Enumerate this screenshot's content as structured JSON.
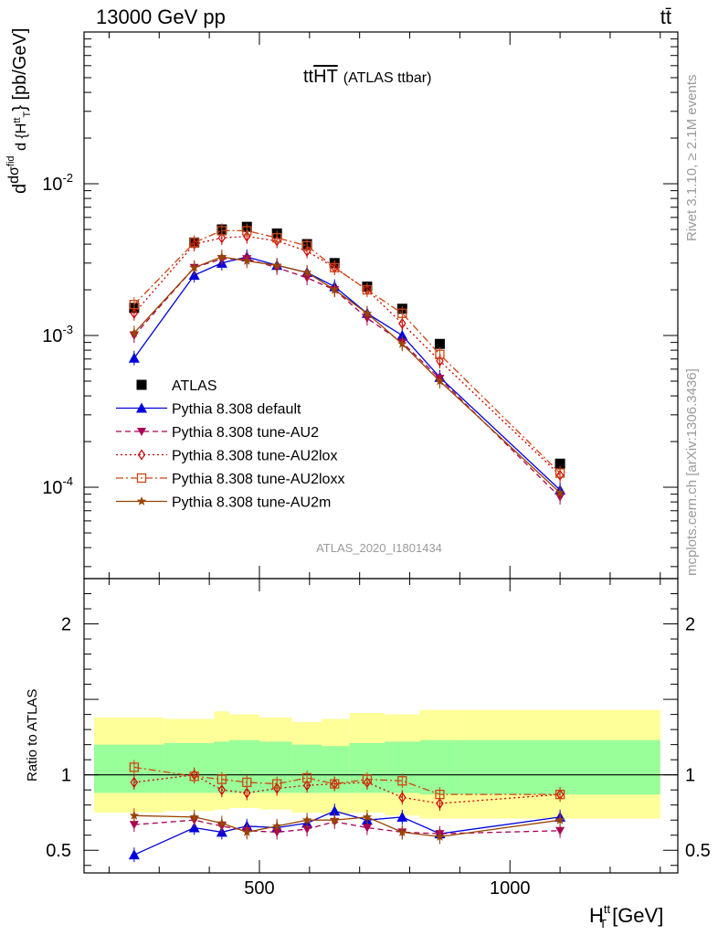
{
  "header": {
    "energy_label": "13000 GeV pp",
    "process_label": "tt̄"
  },
  "side_labels": {
    "rivet": "Rivet 3.1.10, ≥ 2.1M events",
    "mcplots": "mcplots.cern.ch [arXiv:1306.3436]"
  },
  "chart_data": [
    {
      "type": "line",
      "title": "ttHT (ATLAS ttbar)",
      "title_main": "tt",
      "title_over": "HT",
      "title_sub": "(ATLAS ttbar)",
      "watermark": "ATLAS_2020_I1801434",
      "xlabel": "H_T^tt [GeV]",
      "ylabel": "d dσ^fid / d {H_T^tt} [pb/GeV]",
      "x_scale": "linear",
      "y_scale": "log",
      "xlim": [
        150,
        1335
      ],
      "ylim": [
        2.5e-05,
        0.1
      ],
      "x_ticks": [
        500,
        1000
      ],
      "y_ticks": [
        0.0001,
        0.001,
        0.01
      ],
      "y_tick_labels": [
        "10^-4",
        "10^-3",
        "10^-2"
      ],
      "legend_position": "lower-left",
      "x": [
        250,
        370,
        425,
        475,
        535,
        595,
        650,
        715,
        785,
        860,
        1100
      ],
      "series": [
        {
          "name": "ATLAS",
          "color": "#000000",
          "marker": "square-filled",
          "line": "none",
          "values": [
            0.00152,
            0.0041,
            0.005,
            0.0052,
            0.0047,
            0.004,
            0.003,
            0.0021,
            0.0015,
            0.00088,
            0.000143
          ]
        },
        {
          "name": "Pythia 8.308 default",
          "color": "#0000dd",
          "marker": "triangle-up-filled",
          "line": "solid",
          "values": [
            0.00071,
            0.0025,
            0.003,
            0.0033,
            0.0029,
            0.0026,
            0.0021,
            0.0014,
            0.001,
            0.00053,
            9.6e-05
          ]
        },
        {
          "name": "Pythia 8.308 tune-AU2",
          "color": "#aa0055",
          "marker": "triangle-down-filled",
          "line": "dashed",
          "values": [
            0.001,
            0.0028,
            0.0032,
            0.0032,
            0.0028,
            0.0024,
            0.002,
            0.0013,
            0.0009,
            0.00052,
            8.6e-05
          ]
        },
        {
          "name": "Pythia 8.308 tune-AU2lox",
          "color": "#cc0000",
          "marker": "diamond-open",
          "line": "dotted",
          "values": [
            0.0014,
            0.004,
            0.0044,
            0.0045,
            0.0042,
            0.0036,
            0.0028,
            0.002,
            0.0012,
            0.00068,
            0.00012
          ]
        },
        {
          "name": "Pythia 8.308 tune-AU2loxx",
          "color": "#cc4411",
          "marker": "square-open",
          "line": "dashdot",
          "values": [
            0.0016,
            0.0041,
            0.0049,
            0.0049,
            0.0044,
            0.0039,
            0.0028,
            0.002,
            0.0014,
            0.00075,
            0.000124
          ]
        },
        {
          "name": "Pythia 8.308 tune-AU2m",
          "color": "#994400",
          "marker": "star-filled",
          "line": "solid",
          "values": [
            0.00104,
            0.0028,
            0.0033,
            0.0031,
            0.0029,
            0.0026,
            0.002,
            0.0014,
            0.00088,
            0.0005,
            9.2e-05
          ]
        }
      ]
    },
    {
      "type": "line",
      "title": "",
      "ylabel": "Ratio to ATLAS",
      "xlabel": "H_T^tt [GeV]",
      "xlim": [
        150,
        1335
      ],
      "ylim": [
        0.35,
        2.3
      ],
      "x_ticks": [
        500,
        1000
      ],
      "y_ticks": [
        0.5,
        1,
        2
      ],
      "y_tick_labels": [
        "0.5",
        "1",
        "2"
      ],
      "reference_line": 1,
      "band_edges": [
        170,
        310,
        410,
        440,
        500,
        565,
        625,
        680,
        750,
        820,
        905,
        1300
      ],
      "band_inner_low": [
        0.88,
        0.88,
        0.88,
        0.88,
        0.88,
        0.88,
        0.88,
        0.88,
        0.88,
        0.87,
        0.87
      ],
      "band_inner_high": [
        1.2,
        1.21,
        1.22,
        1.23,
        1.22,
        1.2,
        1.19,
        1.21,
        1.22,
        1.23,
        1.23
      ],
      "band_outer_low": [
        0.75,
        0.76,
        0.77,
        0.78,
        0.77,
        0.75,
        0.74,
        0.75,
        0.73,
        0.71,
        0.71
      ],
      "band_outer_high": [
        1.38,
        1.37,
        1.42,
        1.4,
        1.38,
        1.35,
        1.37,
        1.41,
        1.4,
        1.43,
        1.43
      ],
      "band_inner_color": "#99ff99",
      "band_outer_color": "#ffff99",
      "x": [
        250,
        370,
        425,
        475,
        535,
        595,
        650,
        715,
        785,
        860,
        1100
      ],
      "series": [
        {
          "name": "Pythia 8.308 default",
          "color": "#0000dd",
          "marker": "triangle-up-filled",
          "line": "solid",
          "values": [
            0.47,
            0.65,
            0.62,
            0.66,
            0.65,
            0.68,
            0.76,
            0.7,
            0.72,
            0.61,
            0.72
          ]
        },
        {
          "name": "Pythia 8.308 tune-AU2",
          "color": "#aa0055",
          "marker": "triangle-down-filled",
          "line": "dashed",
          "values": [
            0.67,
            0.7,
            0.66,
            0.63,
            0.62,
            0.64,
            0.69,
            0.65,
            0.62,
            0.61,
            0.63
          ]
        },
        {
          "name": "Pythia 8.308 tune-AU2lox",
          "color": "#cc0000",
          "marker": "diamond-open",
          "line": "dotted",
          "values": [
            0.95,
            1.0,
            0.9,
            0.88,
            0.91,
            0.93,
            0.94,
            0.95,
            0.85,
            0.81,
            0.87
          ]
        },
        {
          "name": "Pythia 8.308 tune-AU2loxx",
          "color": "#cc4411",
          "marker": "square-open",
          "line": "dashdot",
          "values": [
            1.05,
            0.99,
            0.97,
            0.95,
            0.94,
            0.98,
            0.94,
            0.97,
            0.96,
            0.87,
            0.87
          ]
        },
        {
          "name": "Pythia 8.308 tune-AU2m",
          "color": "#994400",
          "marker": "star-filled",
          "line": "solid",
          "values": [
            0.73,
            0.72,
            0.68,
            0.62,
            0.66,
            0.7,
            0.7,
            0.72,
            0.62,
            0.59,
            0.7
          ]
        }
      ]
    }
  ]
}
